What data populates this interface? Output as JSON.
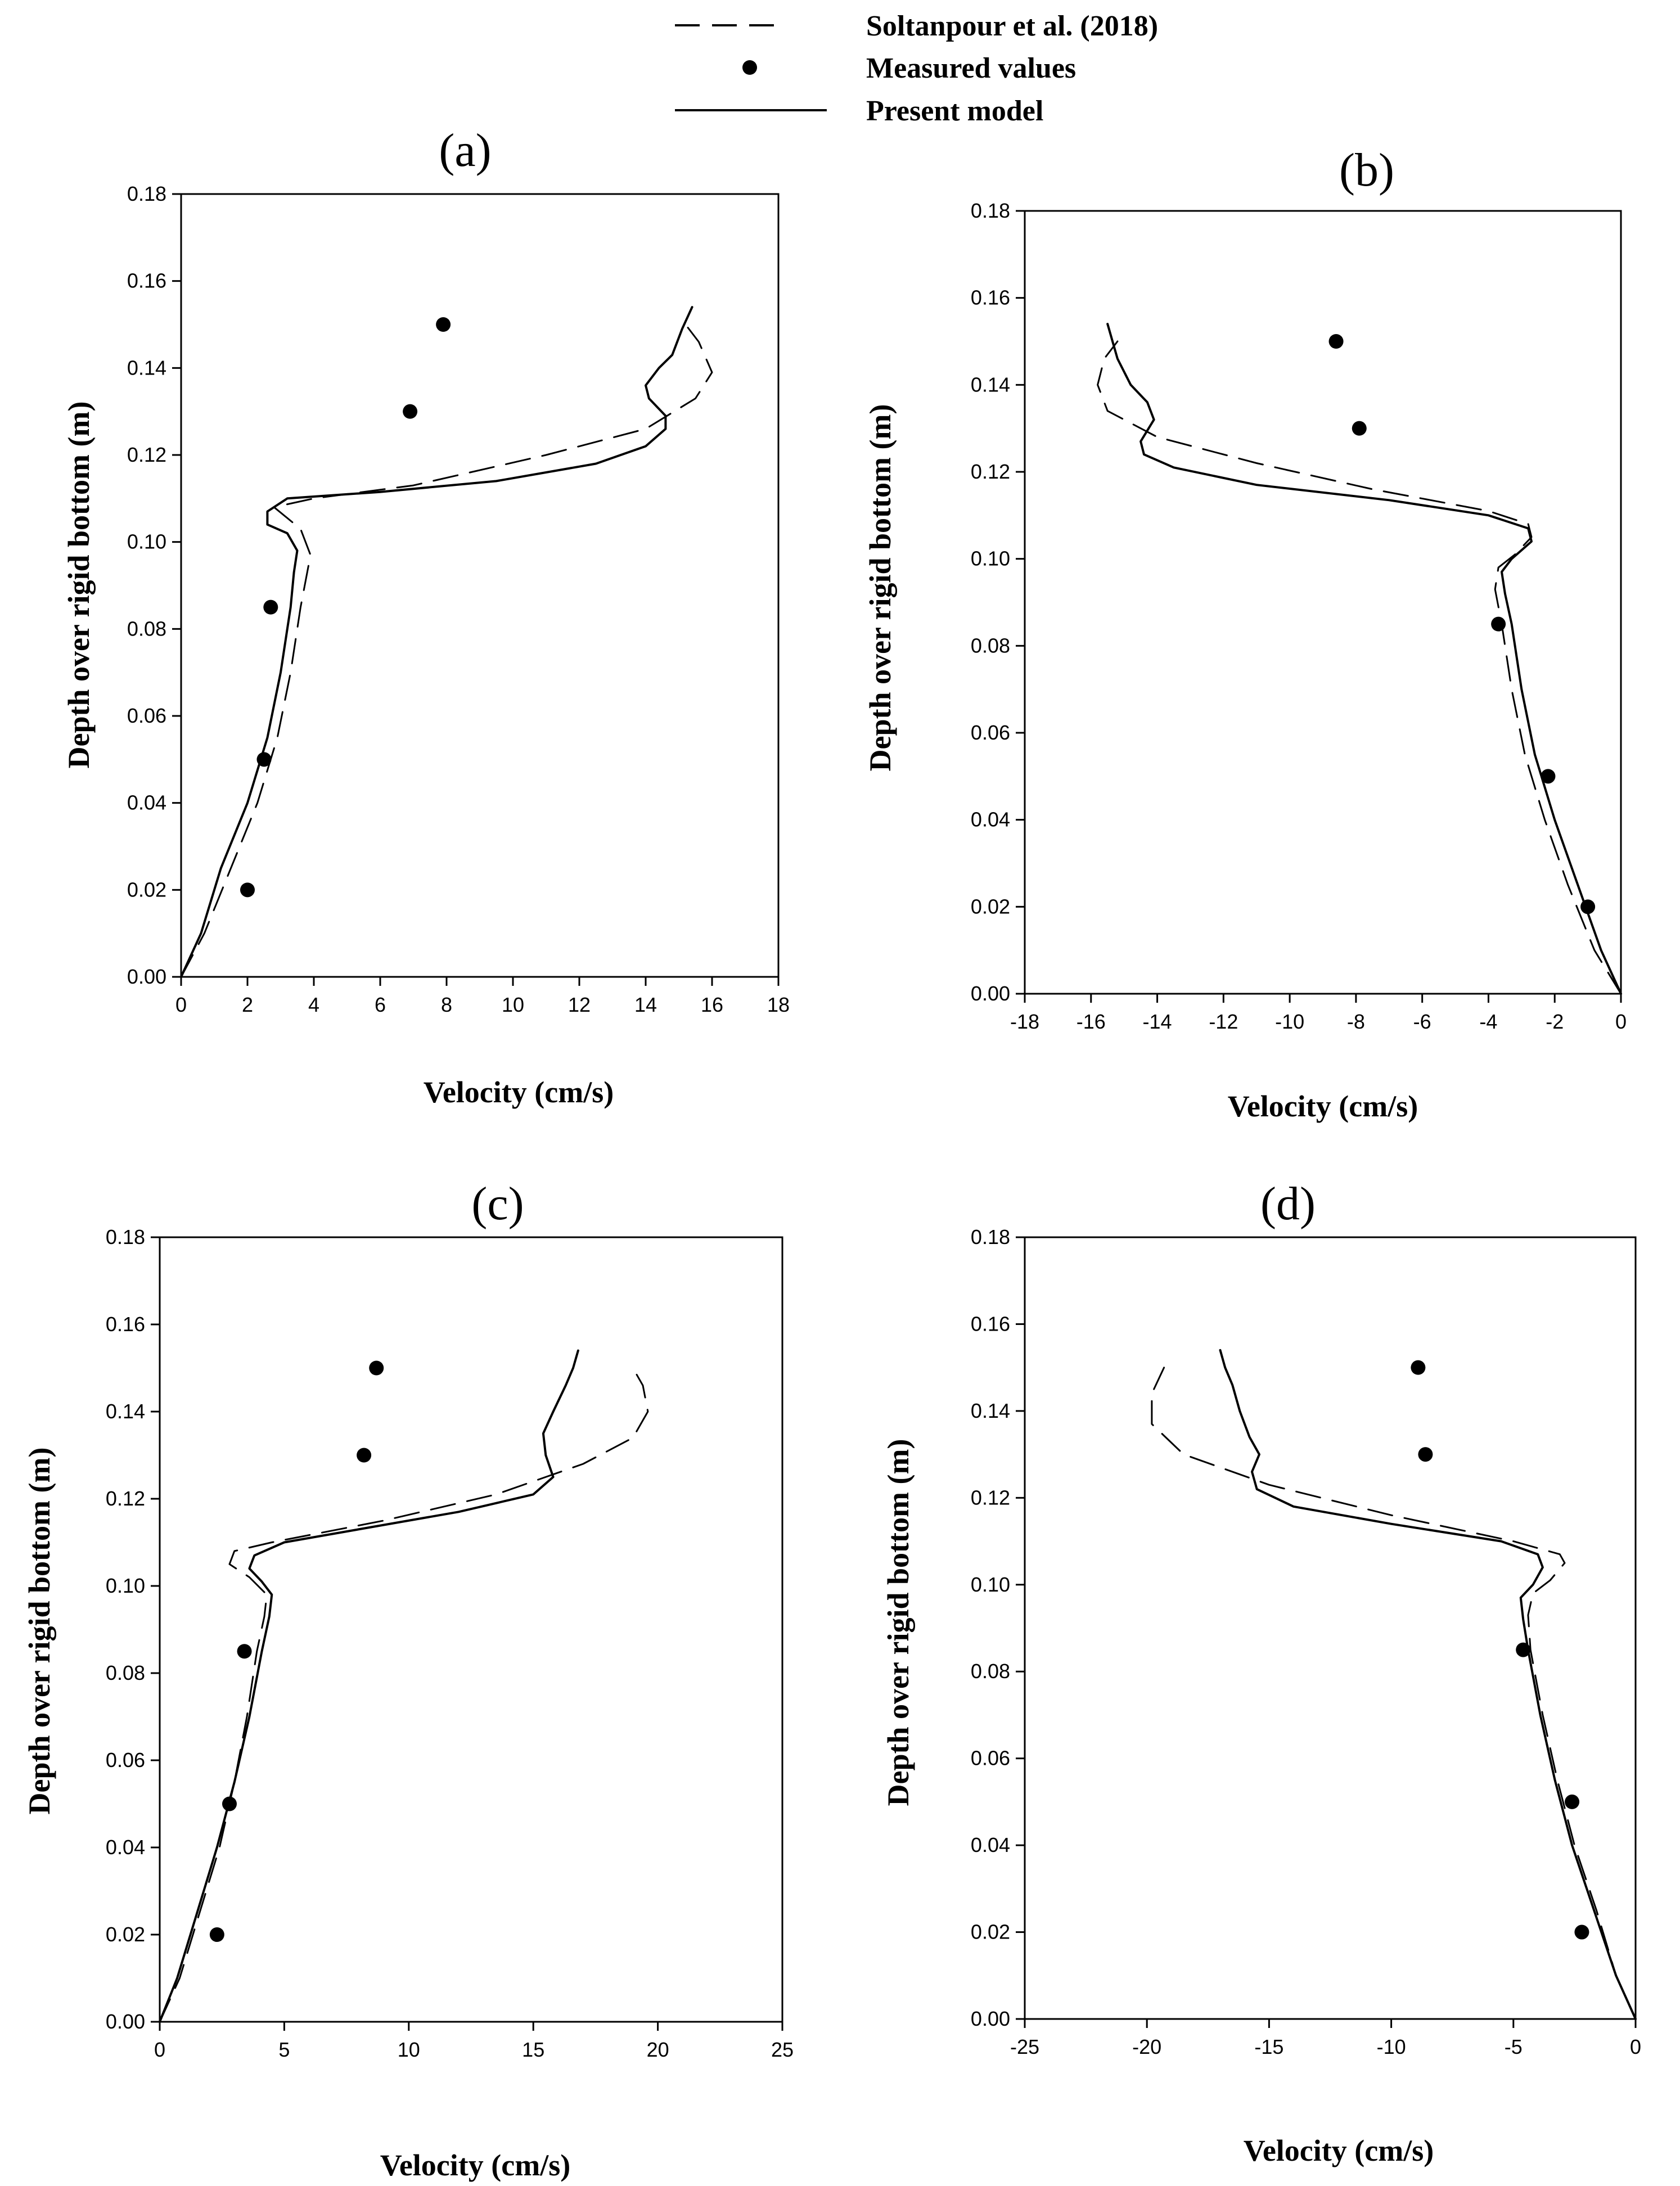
{
  "legend": {
    "entries": [
      {
        "name": "soltanpour",
        "label": "Soltanpour et al. (2018)",
        "style": "dashed"
      },
      {
        "name": "measured",
        "label": "Measured values",
        "style": "marker"
      },
      {
        "name": "present",
        "label": "Present model",
        "style": "solid"
      }
    ]
  },
  "chart_data": [
    {
      "panel": "a",
      "title": "(a)",
      "type": "line",
      "xlabel": "Velocity (cm/s)",
      "ylabel": "Depth over rigid bottom (m)",
      "xlim": [
        0,
        18
      ],
      "ylim": [
        0,
        0.18
      ],
      "xticks": [
        0,
        2,
        4,
        6,
        8,
        10,
        12,
        14,
        16,
        18
      ],
      "xtick_labels": [
        "0",
        "2",
        "4",
        "6",
        "8",
        "10",
        "12",
        "14",
        "16",
        "18"
      ],
      "yticks": [
        0,
        0.02,
        0.04,
        0.06,
        0.08,
        0.1,
        0.12,
        0.14,
        0.16,
        0.18
      ],
      "ytick_labels": [
        "0.00",
        "0.02",
        "0.04",
        "0.06",
        "0.08",
        "0.10",
        "0.12",
        "0.14",
        "0.16",
        "0.18"
      ],
      "series": [
        {
          "name": "Measured values",
          "kind": "scatter",
          "points": [
            [
              2.0,
              0.02
            ],
            [
              2.5,
              0.05
            ],
            [
              2.7,
              0.085
            ],
            [
              6.9,
              0.13
            ],
            [
              7.9,
              0.15
            ]
          ]
        },
        {
          "name": "Soltanpour et al. (2018)",
          "kind": "dashed",
          "points": [
            [
              0,
              0
            ],
            [
              0.7,
              0.01
            ],
            [
              1.5,
              0.025
            ],
            [
              2.3,
              0.04
            ],
            [
              2.9,
              0.055
            ],
            [
              3.3,
              0.07
            ],
            [
              3.6,
              0.085
            ],
            [
              3.9,
              0.097
            ],
            [
              3.6,
              0.103
            ],
            [
              2.8,
              0.108
            ],
            [
              4.0,
              0.11
            ],
            [
              7.0,
              0.113
            ],
            [
              11.0,
              0.12
            ],
            [
              14.0,
              0.126
            ],
            [
              15.5,
              0.133
            ],
            [
              16.0,
              0.139
            ],
            [
              15.6,
              0.146
            ],
            [
              15.2,
              0.15
            ]
          ]
        },
        {
          "name": "Present model",
          "kind": "solid",
          "points": [
            [
              0,
              0
            ],
            [
              0.6,
              0.01
            ],
            [
              1.2,
              0.025
            ],
            [
              2.0,
              0.04
            ],
            [
              2.6,
              0.055
            ],
            [
              3.0,
              0.07
            ],
            [
              3.3,
              0.085
            ],
            [
              3.4,
              0.093
            ],
            [
              3.5,
              0.098
            ],
            [
              3.2,
              0.102
            ],
            [
              2.6,
              0.104
            ],
            [
              2.6,
              0.107
            ],
            [
              3.2,
              0.11
            ],
            [
              6.0,
              0.1115
            ],
            [
              9.5,
              0.114
            ],
            [
              12.5,
              0.118
            ],
            [
              14.0,
              0.122
            ],
            [
              14.6,
              0.126
            ],
            [
              14.6,
              0.129
            ],
            [
              14.1,
              0.133
            ],
            [
              14.0,
              0.136
            ],
            [
              14.4,
              0.14
            ],
            [
              14.8,
              0.143
            ],
            [
              15.1,
              0.149
            ],
            [
              15.4,
              0.154
            ]
          ]
        }
      ]
    },
    {
      "panel": "b",
      "title": "(b)",
      "type": "line",
      "xlabel": "Velocity (cm/s)",
      "ylabel": "Depth over rigid bottom (m)",
      "xlim": [
        -18,
        0
      ],
      "ylim": [
        0,
        0.18
      ],
      "xticks": [
        -18,
        -16,
        -14,
        -12,
        -10,
        -8,
        -6,
        -4,
        -2,
        0
      ],
      "xtick_labels": [
        "-18",
        "-16",
        "-14",
        "-12",
        "-10",
        "-8",
        "-6",
        "-4",
        "-2",
        "0"
      ],
      "yticks": [
        0,
        0.02,
        0.04,
        0.06,
        0.08,
        0.1,
        0.12,
        0.14,
        0.16,
        0.18
      ],
      "ytick_labels": [
        "0.00",
        "0.02",
        "0.04",
        "0.06",
        "0.08",
        "0.10",
        "0.12",
        "0.14",
        "0.16",
        "0.18"
      ],
      "series": [
        {
          "name": "Measured values",
          "kind": "scatter",
          "points": [
            [
              -1.0,
              0.02
            ],
            [
              -2.2,
              0.05
            ],
            [
              -3.7,
              0.085
            ],
            [
              -7.9,
              0.13
            ],
            [
              -8.6,
              0.15
            ]
          ]
        },
        {
          "name": "Soltanpour et al. (2018)",
          "kind": "dashed",
          "points": [
            [
              0,
              0
            ],
            [
              -0.8,
              0.01
            ],
            [
              -1.6,
              0.025
            ],
            [
              -2.3,
              0.04
            ],
            [
              -2.9,
              0.055
            ],
            [
              -3.3,
              0.07
            ],
            [
              -3.6,
              0.085
            ],
            [
              -3.8,
              0.093
            ],
            [
              -3.7,
              0.098
            ],
            [
              -3.2,
              0.101
            ],
            [
              -2.7,
              0.105
            ],
            [
              -2.8,
              0.108
            ],
            [
              -4.0,
              0.111
            ],
            [
              -7.5,
              0.116
            ],
            [
              -11.0,
              0.122
            ],
            [
              -14.0,
              0.128
            ],
            [
              -15.5,
              0.134
            ],
            [
              -15.8,
              0.14
            ],
            [
              -15.6,
              0.146
            ],
            [
              -15.2,
              0.15
            ]
          ]
        },
        {
          "name": "Present model",
          "kind": "solid",
          "points": [
            [
              0,
              0
            ],
            [
              -0.6,
              0.01
            ],
            [
              -1.3,
              0.025
            ],
            [
              -2.0,
              0.04
            ],
            [
              -2.6,
              0.055
            ],
            [
              -3.0,
              0.07
            ],
            [
              -3.3,
              0.085
            ],
            [
              -3.5,
              0.092
            ],
            [
              -3.6,
              0.097
            ],
            [
              -3.3,
              0.1
            ],
            [
              -2.7,
              0.104
            ],
            [
              -2.8,
              0.107
            ],
            [
              -4.0,
              0.11
            ],
            [
              -7.0,
              0.1135
            ],
            [
              -11.0,
              0.117
            ],
            [
              -13.5,
              0.121
            ],
            [
              -14.4,
              0.124
            ],
            [
              -14.5,
              0.127
            ],
            [
              -14.1,
              0.132
            ],
            [
              -14.3,
              0.136
            ],
            [
              -14.8,
              0.14
            ],
            [
              -15.2,
              0.146
            ],
            [
              -15.5,
              0.154
            ]
          ]
        }
      ]
    },
    {
      "panel": "c",
      "title": "(c)",
      "type": "line",
      "xlabel": "Velocity (cm/s)",
      "ylabel": "Depth over rigid bottom (m)",
      "xlim": [
        0,
        25
      ],
      "ylim": [
        0,
        0.18
      ],
      "xticks": [
        0,
        5,
        10,
        15,
        20,
        25
      ],
      "xtick_labels": [
        "0",
        "5",
        "10",
        "15",
        "20",
        "25"
      ],
      "yticks": [
        0,
        0.02,
        0.04,
        0.06,
        0.08,
        0.1,
        0.12,
        0.14,
        0.16,
        0.18
      ],
      "ytick_labels": [
        "0.00",
        "0.02",
        "0.04",
        "0.06",
        "0.08",
        "0.10",
        "0.12",
        "0.14",
        "0.16",
        "0.18"
      ],
      "series": [
        {
          "name": "Measured values",
          "kind": "scatter",
          "points": [
            [
              2.3,
              0.02
            ],
            [
              2.8,
              0.05
            ],
            [
              3.4,
              0.085
            ],
            [
              8.2,
              0.13
            ],
            [
              8.7,
              0.15
            ]
          ]
        },
        {
          "name": "Soltanpour et al. (2018)",
          "kind": "dashed",
          "points": [
            [
              0,
              0
            ],
            [
              0.8,
              0.01
            ],
            [
              1.6,
              0.025
            ],
            [
              2.4,
              0.04
            ],
            [
              3.0,
              0.055
            ],
            [
              3.5,
              0.07
            ],
            [
              3.9,
              0.085
            ],
            [
              4.2,
              0.093
            ],
            [
              4.3,
              0.098
            ],
            [
              3.6,
              0.102
            ],
            [
              2.8,
              0.105
            ],
            [
              3.0,
              0.108
            ],
            [
              4.5,
              0.11
            ],
            [
              9.0,
              0.115
            ],
            [
              13.5,
              0.121
            ],
            [
              17.0,
              0.128
            ],
            [
              19.0,
              0.134
            ],
            [
              19.6,
              0.14
            ],
            [
              19.4,
              0.146
            ],
            [
              19.0,
              0.15
            ]
          ]
        },
        {
          "name": "Present model",
          "kind": "solid",
          "points": [
            [
              0,
              0
            ],
            [
              0.7,
              0.01
            ],
            [
              1.5,
              0.025
            ],
            [
              2.3,
              0.04
            ],
            [
              3.0,
              0.055
            ],
            [
              3.6,
              0.07
            ],
            [
              4.1,
              0.085
            ],
            [
              4.4,
              0.093
            ],
            [
              4.5,
              0.098
            ],
            [
              4.1,
              0.101
            ],
            [
              3.6,
              0.104
            ],
            [
              3.8,
              0.107
            ],
            [
              5.0,
              0.11
            ],
            [
              8.5,
              0.1135
            ],
            [
              12.0,
              0.117
            ],
            [
              15.0,
              0.121
            ],
            [
              15.8,
              0.125
            ],
            [
              15.5,
              0.13
            ],
            [
              15.4,
              0.135
            ],
            [
              15.8,
              0.14
            ],
            [
              16.3,
              0.146
            ],
            [
              16.6,
              0.15
            ],
            [
              16.8,
              0.154
            ]
          ]
        }
      ]
    },
    {
      "panel": "d",
      "title": "(d)",
      "type": "line",
      "xlabel": "Velocity (cm/s)",
      "ylabel": "Depth over rigid bottom (m)",
      "xlim": [
        -25,
        0
      ],
      "ylim": [
        0,
        0.18
      ],
      "xticks": [
        -25,
        -20,
        -15,
        -10,
        -5,
        0
      ],
      "xtick_labels": [
        "-25",
        "-20",
        "-15",
        "-10",
        "-5",
        "0"
      ],
      "yticks": [
        0,
        0.02,
        0.04,
        0.06,
        0.08,
        0.1,
        0.12,
        0.14,
        0.16,
        0.18
      ],
      "ytick_labels": [
        "0.00",
        "0.02",
        "0.04",
        "0.06",
        "0.08",
        "0.10",
        "0.12",
        "0.14",
        "0.16",
        "0.18"
      ],
      "series": [
        {
          "name": "Measured values",
          "kind": "scatter",
          "points": [
            [
              -2.2,
              0.02
            ],
            [
              -2.6,
              0.05
            ],
            [
              -4.6,
              0.085
            ],
            [
              -8.6,
              0.13
            ],
            [
              -8.9,
              0.15
            ]
          ]
        },
        {
          "name": "Soltanpour et al. (2018)",
          "kind": "dashed",
          "points": [
            [
              0,
              0
            ],
            [
              -0.8,
              0.01
            ],
            [
              -1.6,
              0.025
            ],
            [
              -2.5,
              0.04
            ],
            [
              -3.2,
              0.055
            ],
            [
              -3.8,
              0.07
            ],
            [
              -4.3,
              0.085
            ],
            [
              -4.4,
              0.093
            ],
            [
              -4.2,
              0.098
            ],
            [
              -3.5,
              0.101
            ],
            [
              -2.9,
              0.105
            ],
            [
              -3.1,
              0.107
            ],
            [
              -5.0,
              0.11
            ],
            [
              -10.0,
              0.116
            ],
            [
              -15.0,
              0.123
            ],
            [
              -18.5,
              0.13
            ],
            [
              -19.8,
              0.137
            ],
            [
              -19.8,
              0.144
            ],
            [
              -19.3,
              0.15
            ]
          ]
        },
        {
          "name": "Present model",
          "kind": "solid",
          "points": [
            [
              0,
              0
            ],
            [
              -0.8,
              0.01
            ],
            [
              -1.7,
              0.025
            ],
            [
              -2.6,
              0.04
            ],
            [
              -3.3,
              0.055
            ],
            [
              -3.9,
              0.07
            ],
            [
              -4.4,
              0.085
            ],
            [
              -4.6,
              0.092
            ],
            [
              -4.7,
              0.097
            ],
            [
              -4.2,
              0.1
            ],
            [
              -3.8,
              0.104
            ],
            [
              -4.0,
              0.107
            ],
            [
              -5.5,
              0.11
            ],
            [
              -10.0,
              0.114
            ],
            [
              -14.0,
              0.118
            ],
            [
              -15.5,
              0.122
            ],
            [
              -15.7,
              0.126
            ],
            [
              -15.4,
              0.13
            ],
            [
              -15.8,
              0.134
            ],
            [
              -16.2,
              0.14
            ],
            [
              -16.5,
              0.146
            ],
            [
              -16.8,
              0.15
            ],
            [
              -17.0,
              0.154
            ]
          ]
        }
      ]
    }
  ]
}
